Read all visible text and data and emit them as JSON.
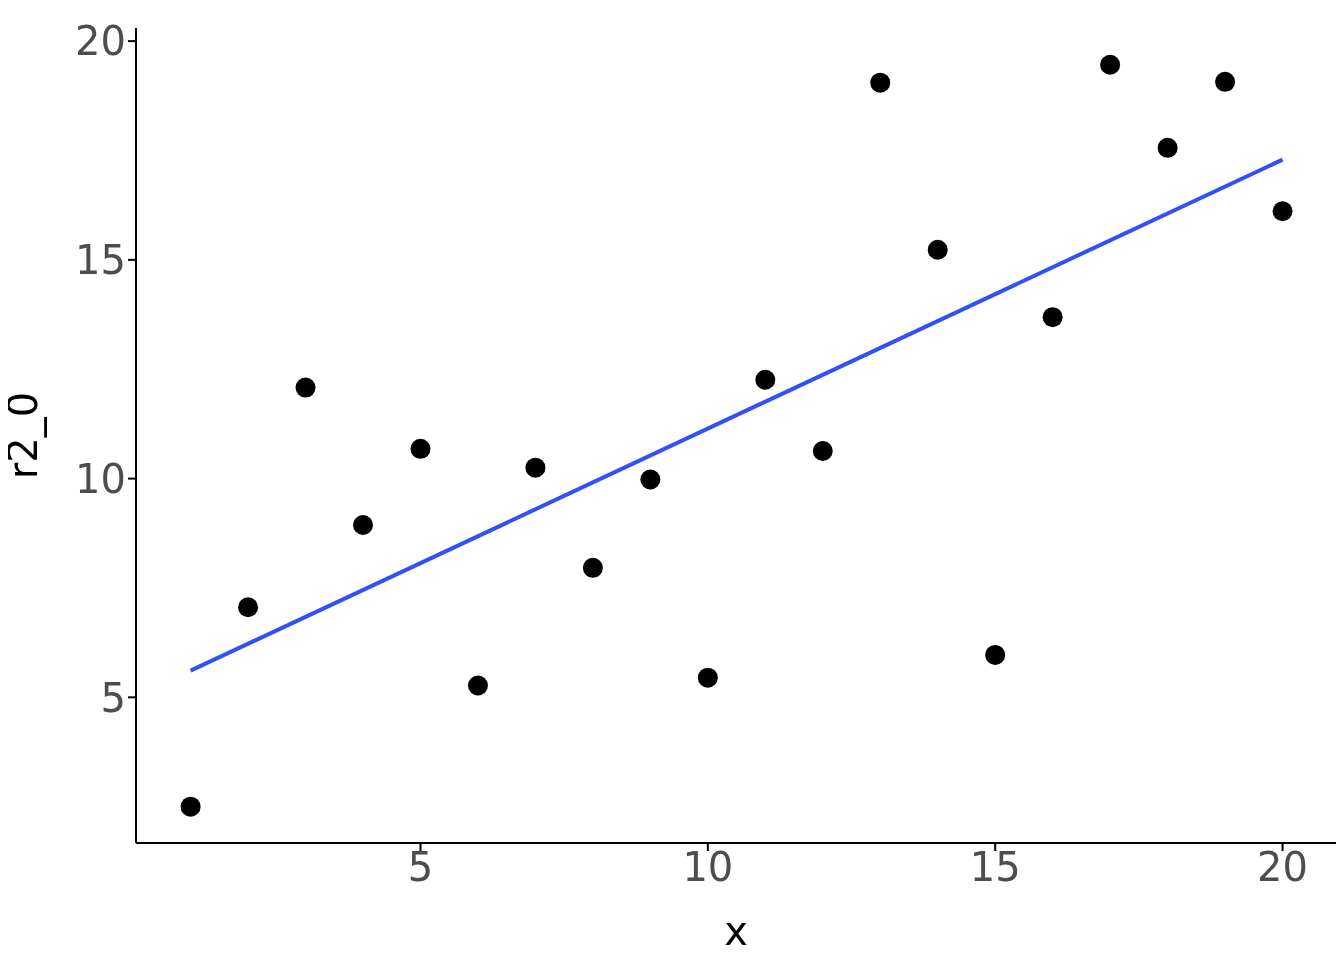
{
  "chart_data": {
    "type": "scatter",
    "xlabel": "x",
    "ylabel": "r2_0",
    "x": [
      1,
      2,
      3,
      4,
      5,
      6,
      7,
      8,
      9,
      10,
      11,
      12,
      13,
      14,
      15,
      16,
      17,
      18,
      19,
      20
    ],
    "series": [
      {
        "color": "#000000",
        "marker": "circle",
        "values": [
          2.5,
          7.06,
          12.08,
          8.94,
          10.68,
          5.27,
          10.25,
          7.96,
          9.98,
          5.45,
          12.26,
          10.63,
          19.05,
          15.23,
          5.97,
          13.69,
          19.46,
          17.56,
          19.07,
          16.11
        ]
      },
      {
        "type": "line",
        "marker": "none",
        "color": "#3050f8",
        "x": [
          1,
          20
        ],
        "values": [
          5.61,
          17.29
        ]
      }
    ],
    "xlim": [
      0.05,
      20.93
    ],
    "ylim": [
      1.67,
      20.3
    ],
    "xticks": [
      5,
      10,
      15,
      20
    ],
    "yticks": [
      5,
      10,
      15,
      20
    ],
    "grid": false,
    "legend": false,
    "line_style": "solid"
  }
}
